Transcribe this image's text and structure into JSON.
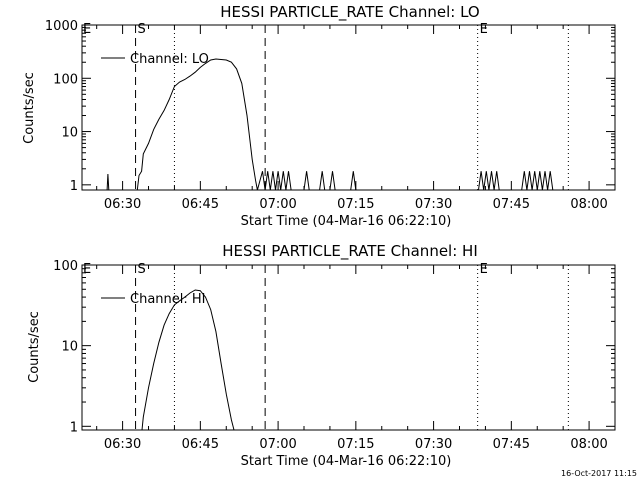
{
  "footer_timestamp": "16-Oct-2017 11:15",
  "chart_data": [
    {
      "type": "line",
      "title": "HESSI PARTICLE_RATE Channel: LO",
      "xlabel": "Start Time (04-Mar-16 06:22:10)",
      "ylabel": "Counts/sec",
      "yscale": "log",
      "xlim": [
        "06:22:10",
        "08:05:00"
      ],
      "ylim": [
        0.8,
        1000
      ],
      "x_ticks": [
        "06:30",
        "06:45",
        "07:00",
        "07:15",
        "07:30",
        "07:45",
        "08:00"
      ],
      "y_ticks": [
        "1",
        "10",
        "100",
        "1000"
      ],
      "legend": {
        "placement": "top-left",
        "entries": [
          "Channel: LO"
        ]
      },
      "markers": [
        {
          "time": "06:32:30",
          "style": "dashed",
          "label": "S"
        },
        {
          "time": "06:40:00",
          "style": "dotted",
          "label": ""
        },
        {
          "time": "06:57:30",
          "style": "dashed",
          "label": ""
        },
        {
          "time": "07:38:30",
          "style": "dotted",
          "label": "E"
        },
        {
          "time": "07:56:00",
          "style": "dotted",
          "label": ""
        }
      ],
      "series": [
        {
          "name": "Channel: LO",
          "points": [
            [
              "06:27:00",
              0.8
            ],
            [
              "06:27:10",
              1.6
            ],
            [
              "06:27:20",
              0.8
            ],
            [
              "06:32:50",
              0.8
            ],
            [
              "06:33:10",
              1.5
            ],
            [
              "06:33:40",
              1.8
            ],
            [
              "06:34:00",
              3.8
            ],
            [
              "06:35:00",
              6
            ],
            [
              "06:36:00",
              11
            ],
            [
              "06:37:00",
              17
            ],
            [
              "06:38:00",
              25
            ],
            [
              "06:39:00",
              40
            ],
            [
              "06:40:00",
              70
            ],
            [
              "06:41:00",
              85
            ],
            [
              "06:42:00",
              95
            ],
            [
              "06:43:00",
              110
            ],
            [
              "06:44:00",
              130
            ],
            [
              "06:45:00",
              160
            ],
            [
              "06:46:00",
              190
            ],
            [
              "06:47:00",
              220
            ],
            [
              "06:48:00",
              230
            ],
            [
              "06:49:00",
              225
            ],
            [
              "06:50:00",
              220
            ],
            [
              "06:51:00",
              200
            ],
            [
              "06:52:00",
              150
            ],
            [
              "06:53:00",
              80
            ],
            [
              "06:54:00",
              20
            ],
            [
              "06:55:00",
              3
            ],
            [
              "06:55:40",
              1.2
            ],
            [
              "06:56:00",
              0.8
            ],
            [
              "06:57:00",
              1.8
            ],
            [
              "06:57:30",
              0.8
            ],
            [
              "06:58:00",
              1.8
            ],
            [
              "06:58:30",
              0.8
            ],
            [
              "06:59:00",
              1.8
            ],
            [
              "06:59:30",
              0.8
            ],
            [
              "07:00:00",
              1.8
            ],
            [
              "07:00:30",
              0.8
            ],
            [
              "07:01:00",
              1.8
            ],
            [
              "07:01:30",
              0.8
            ],
            [
              "07:02:00",
              1.8
            ],
            [
              "07:02:30",
              0.8
            ],
            [
              "07:05:00",
              0.8
            ],
            [
              "07:05:30",
              1.8
            ],
            [
              "07:06:00",
              0.8
            ],
            [
              "07:08:00",
              0.8
            ],
            [
              "07:08:30",
              1.8
            ],
            [
              "07:09:00",
              0.8
            ],
            [
              "07:10:00",
              0.8
            ],
            [
              "07:10:30",
              1.8
            ],
            [
              "07:11:00",
              0.8
            ],
            [
              "07:14:00",
              0.8
            ],
            [
              "07:14:30",
              1.8
            ],
            [
              "07:15:00",
              0.8
            ],
            [
              "07:38:40",
              0.8
            ],
            [
              "07:39:10",
              1.8
            ],
            [
              "07:39:40",
              0.8
            ],
            [
              "07:40:10",
              1.8
            ],
            [
              "07:40:40",
              0.8
            ],
            [
              "07:41:10",
              1.8
            ],
            [
              "07:41:40",
              0.8
            ],
            [
              "07:42:10",
              1.8
            ],
            [
              "07:42:40",
              0.8
            ],
            [
              "07:47:00",
              0.8
            ],
            [
              "07:47:30",
              1.8
            ],
            [
              "07:48:00",
              0.8
            ],
            [
              "07:48:30",
              1.8
            ],
            [
              "07:49:00",
              0.8
            ],
            [
              "07:49:30",
              1.8
            ],
            [
              "07:50:00",
              0.8
            ],
            [
              "07:50:30",
              1.8
            ],
            [
              "07:51:00",
              0.8
            ],
            [
              "07:51:30",
              1.8
            ],
            [
              "07:52:00",
              0.8
            ],
            [
              "07:52:30",
              1.8
            ],
            [
              "07:53:00",
              0.8
            ]
          ]
        }
      ]
    },
    {
      "type": "line",
      "title": "HESSI PARTICLE_RATE Channel: HI",
      "xlabel": "Start Time (04-Mar-16 06:22:10)",
      "ylabel": "Counts/sec",
      "yscale": "log",
      "xlim": [
        "06:22:10",
        "08:05:00"
      ],
      "ylim": [
        0.9,
        100
      ],
      "x_ticks": [
        "06:30",
        "06:45",
        "07:00",
        "07:15",
        "07:30",
        "07:45",
        "08:00"
      ],
      "y_ticks": [
        "1",
        "10",
        "100"
      ],
      "legend": {
        "placement": "top-left",
        "entries": [
          "Channel: HI"
        ]
      },
      "markers": [
        {
          "time": "06:32:30",
          "style": "dashed",
          "label": "S"
        },
        {
          "time": "06:40:00",
          "style": "dotted",
          "label": ""
        },
        {
          "time": "06:57:30",
          "style": "dashed",
          "label": ""
        },
        {
          "time": "07:38:30",
          "style": "dotted",
          "label": "E"
        },
        {
          "time": "07:56:00",
          "style": "dotted",
          "label": ""
        }
      ],
      "series": [
        {
          "name": "Channel: HI",
          "points": [
            [
              "06:33:45",
              0.9
            ],
            [
              "06:34:00",
              1.3
            ],
            [
              "06:35:00",
              3
            ],
            [
              "06:36:00",
              6
            ],
            [
              "06:37:00",
              11
            ],
            [
              "06:38:00",
              18
            ],
            [
              "06:39:00",
              25
            ],
            [
              "06:40:00",
              32
            ],
            [
              "06:41:00",
              36
            ],
            [
              "06:42:00",
              40
            ],
            [
              "06:43:00",
              45
            ],
            [
              "06:44:00",
              49
            ],
            [
              "06:45:00",
              48
            ],
            [
              "06:46:00",
              40
            ],
            [
              "06:47:00",
              28
            ],
            [
              "06:48:00",
              15
            ],
            [
              "06:49:00",
              6
            ],
            [
              "06:50:00",
              2.5
            ],
            [
              "06:51:00",
              1.2
            ],
            [
              "06:51:30",
              0.9
            ]
          ]
        }
      ]
    }
  ]
}
